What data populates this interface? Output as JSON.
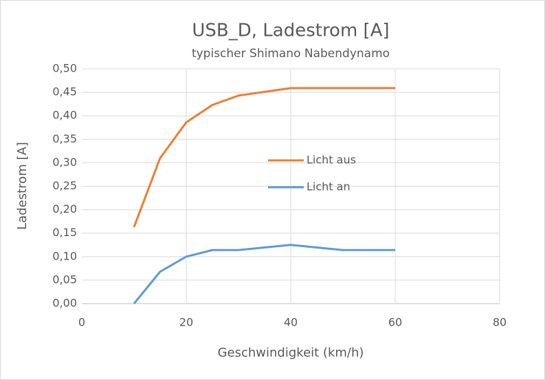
{
  "chart_data": {
    "type": "line",
    "title": "USB_D, Ladestrom [A]",
    "subtitle": "typischer Shimano Nabendynamo",
    "x_label": "Geschwindigkeit (km/h)",
    "y_label": "Ladestrom [A]",
    "x": [
      10,
      15,
      20,
      25,
      30,
      40,
      50,
      60
    ],
    "series": [
      {
        "name": "Licht aus",
        "color": "#ed7d31",
        "values": [
          0.163,
          0.31,
          0.386,
          0.423,
          0.443,
          0.459,
          0.459,
          0.459
        ]
      },
      {
        "name": "Licht an",
        "color": "#5b9bd5",
        "values": [
          0,
          0.068,
          0.1,
          0.114,
          0.114,
          0.125,
          0.114,
          0.114
        ]
      }
    ],
    "xlim": [
      0,
      80
    ],
    "xticks": [
      0,
      20,
      40,
      60,
      80
    ],
    "ylim": [
      0,
      0.5
    ],
    "yticks": [
      {
        "value": 0,
        "label": "0,00"
      },
      {
        "value": 0.05,
        "label": "0,05"
      },
      {
        "value": 0.1,
        "label": "0,10"
      },
      {
        "value": 0.15,
        "label": "0,15"
      },
      {
        "value": 0.2,
        "label": "0,20"
      },
      {
        "value": 0.25,
        "label": "0,25"
      },
      {
        "value": 0.3,
        "label": "0,30"
      },
      {
        "value": 0.35,
        "label": "0,35"
      },
      {
        "value": 0.4,
        "label": "0,40"
      },
      {
        "value": 0.45,
        "label": "0,45"
      },
      {
        "value": 0.5,
        "label": "0,50"
      }
    ],
    "grid": true,
    "legend": "center"
  }
}
